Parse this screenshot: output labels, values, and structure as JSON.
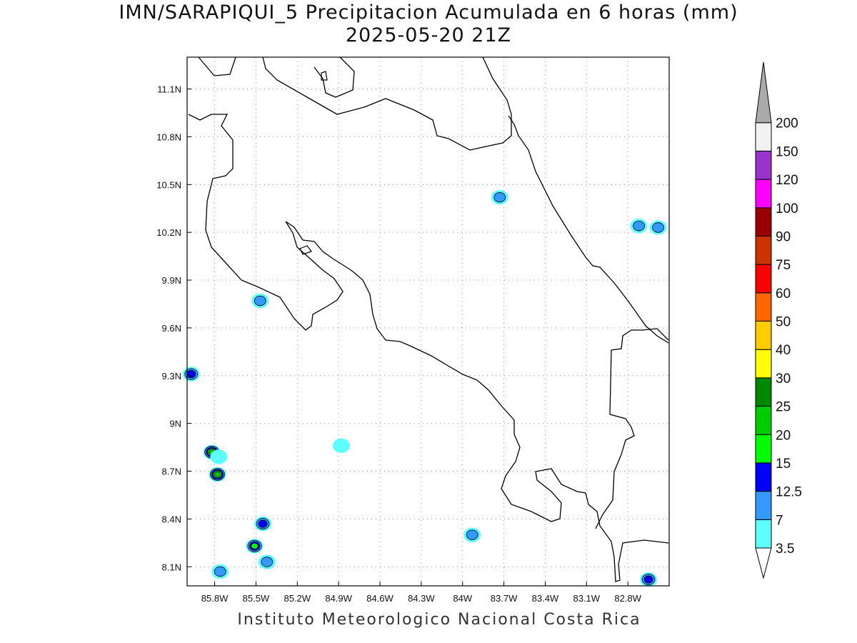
{
  "header": {
    "title": "IMN/SARAPIQUI_5 Precipitacion Acumulada en 6 horas (mm)",
    "subtitle": "2025-05-20 21Z"
  },
  "footer": {
    "credit": "Instituto Meteorologico Nacional Costa Rica"
  },
  "map": {
    "lon_range": [
      -86.0,
      -82.5
    ],
    "lat_range": [
      7.98,
      11.3
    ],
    "lon_ticks": [
      {
        "value": -85.8,
        "label": "85.8W"
      },
      {
        "value": -85.5,
        "label": "85.5W"
      },
      {
        "value": -85.2,
        "label": "85.2W"
      },
      {
        "value": -84.9,
        "label": "84.9W"
      },
      {
        "value": -84.6,
        "label": "84.6W"
      },
      {
        "value": -84.3,
        "label": "84.3W"
      },
      {
        "value": -84.0,
        "label": "84W"
      },
      {
        "value": -83.7,
        "label": "83.7W"
      },
      {
        "value": -83.4,
        "label": "83.4W"
      },
      {
        "value": -83.1,
        "label": "83.1W"
      },
      {
        "value": -82.8,
        "label": "82.8W"
      }
    ],
    "lat_ticks": [
      {
        "value": 11.1,
        "label": "11.1N"
      },
      {
        "value": 10.8,
        "label": "10.8N"
      },
      {
        "value": 10.5,
        "label": "10.5N"
      },
      {
        "value": 10.2,
        "label": "10.2N"
      },
      {
        "value": 9.9,
        "label": "9.9N"
      },
      {
        "value": 9.6,
        "label": "9.6N"
      },
      {
        "value": 9.3,
        "label": "9.3N"
      },
      {
        "value": 9.0,
        "label": "9N"
      },
      {
        "value": 8.7,
        "label": "8.7N"
      },
      {
        "value": 8.4,
        "label": "8.4N"
      },
      {
        "value": 8.1,
        "label": "8.1N"
      }
    ],
    "grid": true
  },
  "legend": {
    "levels": [
      "3.5",
      "7",
      "12.5",
      "15",
      "20",
      "25",
      "30",
      "40",
      "50",
      "60",
      "75",
      "90",
      "100",
      "120",
      "150",
      "200"
    ],
    "colors": [
      "#5effff",
      "#3399ff",
      "#0000ff",
      "#00ff00",
      "#00cc00",
      "#008800",
      "#ffff00",
      "#ffcc00",
      "#ff6600",
      "#ff0000",
      "#cc3300",
      "#990000",
      "#ff00ff",
      "#9933cc",
      "#f2f2f2",
      "#aaaaaa"
    ],
    "below_color": "#ffffff"
  },
  "precip_cells": [
    {
      "lon": -85.47,
      "lat": 9.77,
      "max": "7"
    },
    {
      "lon": -85.97,
      "lat": 9.31,
      "max": "12.5"
    },
    {
      "lon": -85.82,
      "lat": 8.82,
      "max": "20"
    },
    {
      "lon": -85.78,
      "lat": 8.68,
      "max": "20"
    },
    {
      "lon": -85.77,
      "lat": 8.79,
      "max": "3.5"
    },
    {
      "lon": -85.45,
      "lat": 8.37,
      "max": "12.5"
    },
    {
      "lon": -85.51,
      "lat": 8.23,
      "max": "15"
    },
    {
      "lon": -85.42,
      "lat": 8.13,
      "max": "7"
    },
    {
      "lon": -85.76,
      "lat": 8.07,
      "max": "7"
    },
    {
      "lon": -84.88,
      "lat": 8.86,
      "max": "3.5"
    },
    {
      "lon": -83.93,
      "lat": 8.3,
      "max": "7"
    },
    {
      "lon": -83.73,
      "lat": 10.42,
      "max": "7"
    },
    {
      "lon": -82.72,
      "lat": 10.24,
      "max": "7"
    },
    {
      "lon": -82.58,
      "lat": 10.23,
      "max": "7"
    },
    {
      "lon": -82.65,
      "lat": 8.02,
      "max": "12.5"
    }
  ]
}
